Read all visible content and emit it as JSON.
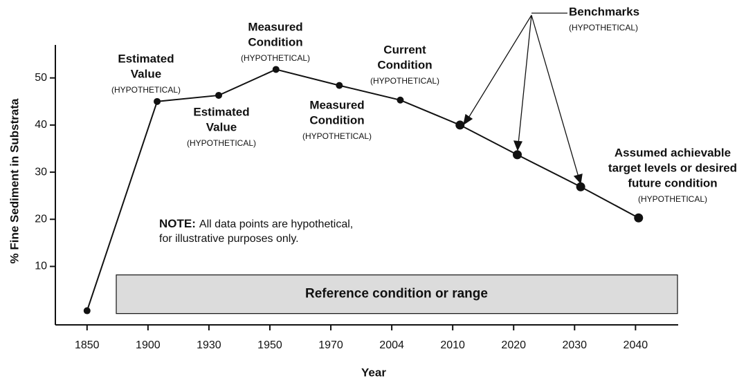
{
  "chart_data": {
    "type": "line",
    "x_label": "Year",
    "y_label": "% Fine Sediment in Substrata",
    "xticks": [
      {
        "value": 0,
        "label": "1850"
      },
      {
        "value": 1,
        "label": "1900"
      },
      {
        "value": 2,
        "label": "1930"
      },
      {
        "value": 3,
        "label": "1950"
      },
      {
        "value": 4,
        "label": "1970"
      },
      {
        "value": 5,
        "label": "2004"
      },
      {
        "value": 6,
        "label": "2010"
      },
      {
        "value": 7,
        "label": "2020"
      },
      {
        "value": 8,
        "label": "2030"
      },
      {
        "value": 9,
        "label": "2040"
      }
    ],
    "xlim": [
      -0.52,
      9.7
    ],
    "ylim": [
      -2.4,
      57
    ],
    "yticks": [
      10,
      20,
      30,
      40,
      50
    ],
    "x": [
      0,
      1.15,
      2.16,
      3.1,
      4.14,
      5.14,
      6.12,
      7.06,
      8.1,
      9.05
    ],
    "values": [
      0.6,
      45,
      46.3,
      51.8,
      48.4,
      45.3,
      40,
      33.7,
      26.9,
      20.3
    ],
    "color": "#111111",
    "annotations": [
      {
        "lines": [
          "Estimated",
          "Value"
        ],
        "note": "(HYPOTHETICAL)"
      },
      {
        "lines": [
          "Estimated",
          "Value"
        ],
        "note": "(HYPOTHETICAL)"
      },
      {
        "lines": [
          "Measured",
          "Condition"
        ],
        "note": "(HYPOTHETICAL)"
      },
      {
        "lines": [
          "Measured",
          "Condition"
        ],
        "note": "(HYPOTHETICAL)"
      },
      {
        "lines": [
          "Current",
          "Condition"
        ],
        "note": "(HYPOTHETICAL)"
      },
      {
        "lines": [
          "Benchmarks"
        ],
        "note": "(HYPOTHETICAL)"
      },
      {
        "lines": [
          "Assumed achievable",
          "target levels or desired",
          "future condition"
        ],
        "note": "(HYPOTHETICAL)"
      }
    ],
    "note": {
      "label": "NOTE:",
      "lines": [
        "All data points are hypothetical,",
        "for illustrative purposes only."
      ]
    },
    "reference_band": {
      "label": "Reference condition or range",
      "range": [
        0,
        8.2
      ]
    }
  }
}
